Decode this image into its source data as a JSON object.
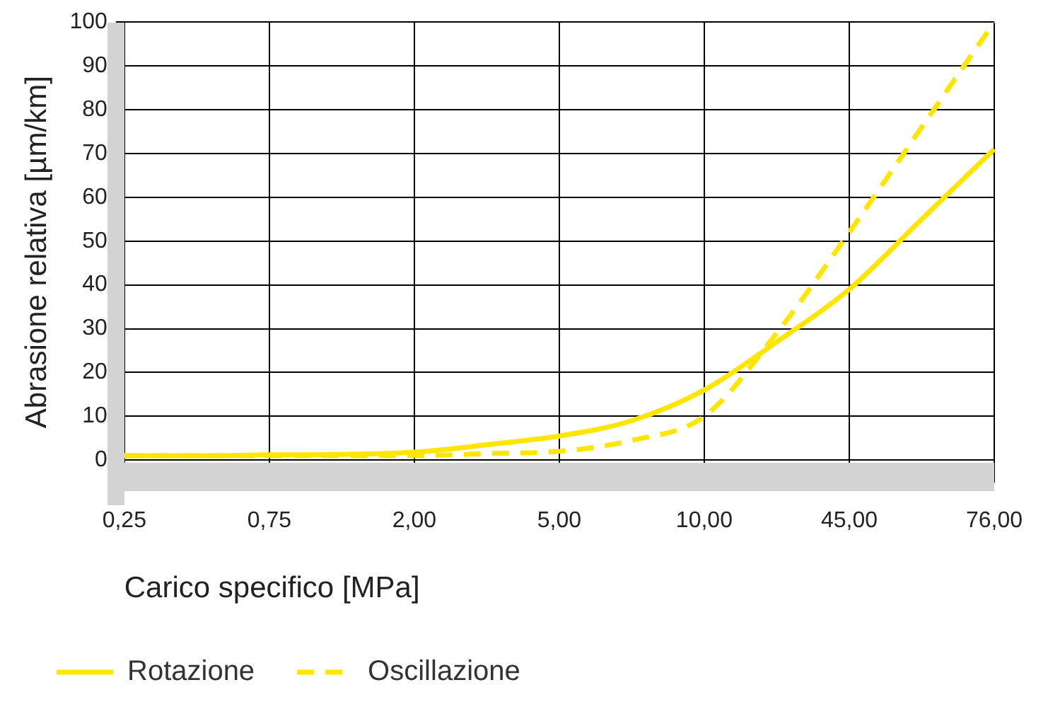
{
  "chart_data": {
    "type": "line",
    "xlabel": "Carico specifico [MPa]",
    "ylabel": "Abrasione relativa [µm/km]",
    "categories": [
      "0,25",
      null,
      "0,75",
      null,
      "2,00",
      null,
      "5,00",
      null,
      "10,00",
      null,
      "45,00",
      null,
      "76,00"
    ],
    "series": [
      {
        "name": "Rotazione",
        "color": "#ffe600",
        "line_style": "solid",
        "values": [
          1,
          1,
          1.2,
          1.3,
          1.8,
          3.5,
          5.5,
          9,
          16,
          27,
          39,
          55,
          71
        ]
      },
      {
        "name": "Oscillazione",
        "color": "#ffe600",
        "line_style": "dashed",
        "values": [
          1,
          1,
          1,
          1,
          1,
          1.5,
          2,
          4.5,
          10,
          29,
          52,
          76,
          100
        ]
      }
    ],
    "ylim": [
      -5,
      100
    ],
    "yticks": [
      0,
      10,
      20,
      30,
      40,
      50,
      60,
      70,
      80,
      90,
      100
    ],
    "grid": true,
    "legend": "bottom",
    "marker": "none"
  }
}
